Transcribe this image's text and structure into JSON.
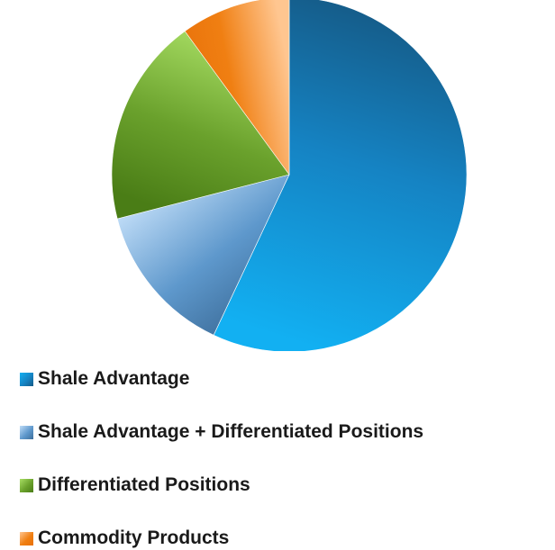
{
  "chart_data": {
    "type": "pie",
    "title": "",
    "start_angle_deg": 0,
    "direction": "clockwise",
    "slices": [
      {
        "label": "Shale Advantage",
        "value": 57,
        "color": "#1583c3",
        "light": "#12b0f2",
        "dark": "#155a86"
      },
      {
        "label": "Shale Advantage + Differentiated Positions",
        "value": 14,
        "color": "#5e98cc",
        "light": "#bfdcf7",
        "dark": "#3d6e9b"
      },
      {
        "label": "Differentiated Positions",
        "value": 19,
        "color": "#6aa12c",
        "light": "#a8de64",
        "dark": "#4a7d16"
      },
      {
        "label": "Commodity Products",
        "value": 10,
        "color": "#f07f12",
        "light": "#ffc690",
        "dark": "#e8710a"
      }
    ],
    "legend_position": "bottom-left"
  },
  "legend": {
    "items": [
      {
        "label": "Shale Advantage",
        "color": "#1583c3"
      },
      {
        "label": "Shale Advantage + Differentiated Positions",
        "color": "#5e98cc"
      },
      {
        "label": "Differentiated Positions",
        "color": "#6aa12c"
      },
      {
        "label": "Commodity Products",
        "color": "#f07f12"
      }
    ]
  }
}
